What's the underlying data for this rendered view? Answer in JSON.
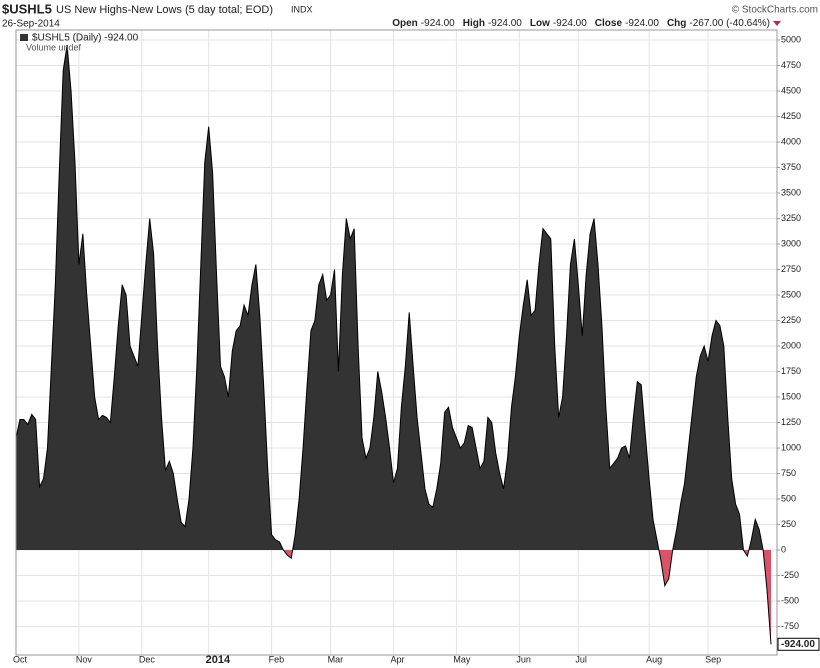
{
  "chart_data": {
    "type": "area",
    "title": "$USHL5",
    "subtitle": "US New Highs-New Lows (5 day total; EOD)",
    "exchange": "INDX",
    "date": "26-Sep-2014",
    "copyright": "© StockCharts.com",
    "quote": [
      {
        "label": "Open",
        "value": "-924.00"
      },
      {
        "label": "High",
        "value": "-924.00"
      },
      {
        "label": "Low",
        "value": "-924.00"
      },
      {
        "label": "Close",
        "value": "-924.00"
      },
      {
        "label": "Chg",
        "value": "-267.00 (-40.64%)"
      }
    ],
    "volume_note": "Volume undef",
    "categories": [
      "Oct",
      null,
      null,
      null,
      null,
      null,
      null,
      null,
      null,
      null,
      null,
      null,
      null,
      null,
      null,
      null,
      "Nov",
      null,
      null,
      null,
      null,
      null,
      null,
      null,
      null,
      null,
      null,
      null,
      null,
      null,
      null,
      null,
      "Dec",
      null,
      null,
      null,
      null,
      null,
      null,
      null,
      null,
      null,
      null,
      null,
      null,
      null,
      null,
      null,
      null,
      "2014",
      null,
      null,
      null,
      null,
      null,
      null,
      null,
      null,
      null,
      null,
      null,
      null,
      null,
      null,
      null,
      "Feb",
      null,
      null,
      null,
      null,
      null,
      null,
      null,
      null,
      null,
      null,
      null,
      null,
      null,
      null,
      "Mar",
      null,
      null,
      null,
      null,
      null,
      null,
      null,
      null,
      null,
      null,
      null,
      null,
      null,
      null,
      null,
      "Apr",
      null,
      null,
      null,
      null,
      null,
      null,
      null,
      null,
      null,
      null,
      null,
      null,
      null,
      null,
      null,
      "May",
      null,
      null,
      null,
      null,
      null,
      null,
      null,
      null,
      null,
      null,
      null,
      null,
      null,
      null,
      null,
      "Jun",
      null,
      null,
      null,
      null,
      null,
      null,
      null,
      null,
      null,
      null,
      null,
      null,
      null,
      null,
      "Jul",
      null,
      null,
      null,
      null,
      null,
      null,
      null,
      null,
      null,
      null,
      null,
      null,
      null,
      null,
      null,
      null,
      null,
      "Aug",
      null,
      null,
      null,
      null,
      null,
      null,
      null,
      null,
      null,
      null,
      null,
      null,
      null,
      null,
      "Sep",
      null,
      null,
      null,
      null,
      null,
      null,
      null,
      null,
      null,
      null,
      null,
      null,
      null,
      null,
      null,
      null
    ],
    "series": [
      {
        "name": "$USHL5 (Daily) -924.00",
        "color": "#333333",
        "negative_color": "#d9536a",
        "values": [
          1100,
          1280,
          1280,
          1230,
          1330,
          1280,
          620,
          700,
          1000,
          1800,
          2600,
          3700,
          4700,
          4950,
          4500,
          3800,
          2800,
          3100,
          2500,
          2000,
          1500,
          1280,
          1320,
          1300,
          1250,
          1700,
          2200,
          2600,
          2500,
          2000,
          1900,
          1800,
          2300,
          2800,
          3250,
          2900,
          2000,
          1300,
          780,
          870,
          750,
          500,
          270,
          230,
          500,
          1000,
          1800,
          2800,
          3800,
          4150,
          3700,
          2700,
          1800,
          1700,
          1500,
          1950,
          2150,
          2200,
          2400,
          2300,
          2600,
          2800,
          2300,
          1600,
          800,
          150,
          100,
          80,
          0,
          -50,
          -80,
          150,
          500,
          1000,
          1600,
          2150,
          2250,
          2600,
          2700,
          2450,
          2500,
          2750,
          1750,
          2700,
          3250,
          3050,
          3150,
          2000,
          1100,
          900,
          1000,
          1300,
          1750,
          1550,
          1300,
          1000,
          660,
          800,
          1400,
          1800,
          2330,
          1800,
          1300,
          950,
          600,
          450,
          420,
          600,
          850,
          1350,
          1400,
          1200,
          1100,
          1000,
          1050,
          1220,
          1200,
          1000,
          800,
          870,
          1300,
          1250,
          950,
          750,
          600,
          900,
          1400,
          1700,
          2100,
          2400,
          2650,
          2300,
          2350,
          2800,
          3150,
          3100,
          3050,
          2000,
          1300,
          1500,
          2100,
          2800,
          3050,
          2600,
          2100,
          2700,
          3100,
          3250,
          2800,
          2200,
          1400,
          800,
          850,
          900,
          1000,
          1020,
          900,
          1300,
          1650,
          1620,
          1150,
          700,
          300,
          100,
          -100,
          -350,
          -280,
          0,
          200,
          450,
          650,
          1000,
          1350,
          1700,
          1900,
          2000,
          1850,
          2100,
          2250,
          2200,
          2000,
          1300,
          700,
          450,
          350,
          0,
          -60,
          100,
          300,
          200,
          0,
          -400,
          -924
        ],
        "value_labels": [
          null,
          null,
          null,
          null,
          null,
          null,
          null,
          null,
          null,
          null,
          null,
          null,
          null,
          null,
          null,
          null,
          null,
          null,
          null,
          null,
          null,
          null,
          null,
          null,
          null,
          null,
          null,
          null,
          null,
          null,
          null,
          null,
          null,
          null,
          null,
          null,
          null,
          null,
          null,
          null,
          null,
          null,
          null,
          null,
          null,
          null,
          null,
          null,
          null,
          null,
          null,
          null,
          null,
          null,
          null,
          null,
          null,
          null,
          null,
          null,
          null,
          null,
          null,
          null,
          null,
          null,
          null,
          null,
          null,
          null,
          null,
          null,
          null,
          null,
          null,
          null,
          null,
          null,
          null,
          null,
          null,
          null,
          null,
          null,
          null,
          null,
          null,
          null,
          null,
          null,
          null,
          null,
          null,
          null,
          null,
          null,
          null,
          null,
          null,
          null,
          null,
          null,
          null,
          null,
          null,
          null,
          null,
          null,
          null,
          null,
          null,
          null,
          null,
          null,
          null,
          null,
          null,
          null,
          null,
          null,
          null,
          null,
          null,
          null,
          null,
          null,
          null,
          null,
          null,
          null,
          null,
          null,
          null,
          null,
          null,
          null,
          null,
          null,
          null,
          null,
          null,
          null,
          null,
          null,
          null,
          null,
          null,
          null,
          null,
          null,
          null,
          null,
          null,
          null,
          null,
          null,
          null,
          null,
          null,
          null,
          null,
          null,
          null,
          null,
          null,
          null,
          null,
          null,
          null,
          null,
          null,
          null,
          null,
          null,
          null,
          null,
          null,
          null,
          null,
          null,
          null,
          null,
          null,
          null,
          null,
          null,
          null,
          null,
          null,
          null,
          null,
          null,
          "-924.00"
        ]
      }
    ],
    "ylim": [
      -1029,
      5098
    ],
    "yticks": [
      -750,
      -500,
      -250,
      0,
      250,
      500,
      750,
      1000,
      1250,
      1500,
      1750,
      2000,
      2250,
      2500,
      2750,
      3000,
      3250,
      3500,
      3750,
      4000,
      4250,
      4500,
      4750,
      5000
    ],
    "grid": true
  }
}
